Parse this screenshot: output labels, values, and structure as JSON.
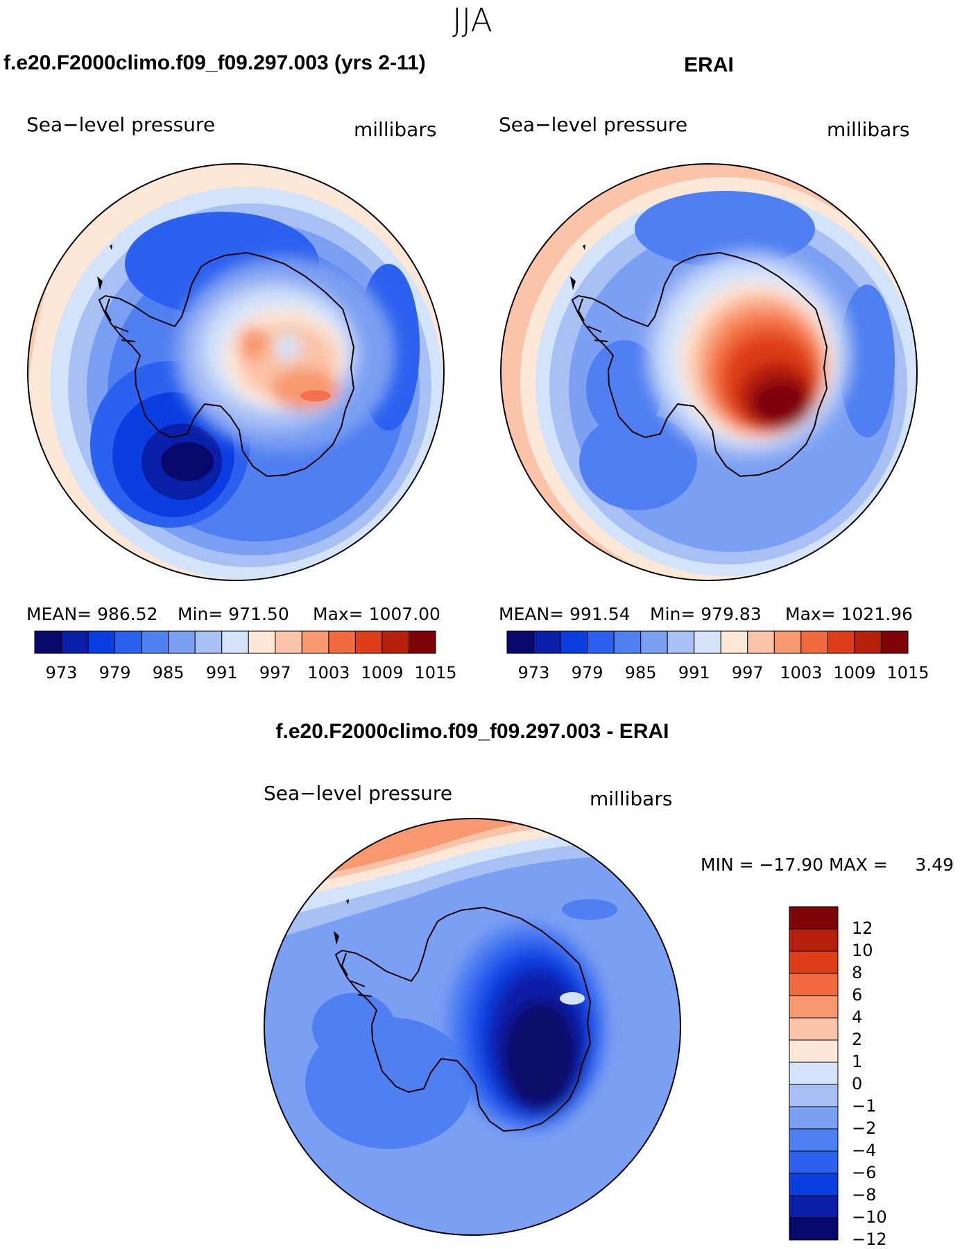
{
  "supertitle": "JJA",
  "panels": [
    {
      "title": "f.e20.F2000climo.f09_f09.297.003 (yrs 2-11)",
      "left_label": "Sea−level pressure",
      "right_label": "millibars",
      "stats": {
        "mean": "MEAN= 986.52",
        "min": "Min= 971.50",
        "max": "Max= 1007.00"
      }
    },
    {
      "title": "ERAI",
      "left_label": "Sea−level pressure",
      "right_label": "millibars",
      "stats": {
        "mean": "MEAN= 991.54",
        "min": "Min= 979.83",
        "max": "Max= 1021.96"
      }
    },
    {
      "title": "f.e20.F2000climo.f09_f09.297.003 - ERAI",
      "left_label": "Sea−level pressure",
      "right_label": "millibars",
      "minmax": "MIN = −17.90 MAX =     3.49"
    }
  ],
  "colorbar_abs": {
    "labels": [
      "973",
      "979",
      "985",
      "991",
      "997",
      "1003",
      "1009",
      "1015"
    ],
    "colors": [
      "#08086b",
      "#0a1fa8",
      "#0b3ee0",
      "#2c60ee",
      "#4f7ff0",
      "#7b9ff2",
      "#a9c0f5",
      "#d3e3fa",
      "#fde8d8",
      "#fbc3a8",
      "#f8986f",
      "#f1693e",
      "#dd3d18",
      "#b61f0c",
      "#7f0407"
    ]
  },
  "colorbar_diff": {
    "labels": [
      "12",
      "10",
      "8",
      "6",
      "4",
      "2",
      "1",
      "0",
      "−1",
      "−2",
      "−4",
      "−6",
      "−8",
      "−10",
      "−12"
    ],
    "colors": [
      "#7f0407",
      "#b61f0c",
      "#dd3d18",
      "#f1693e",
      "#f8986f",
      "#fbc3a8",
      "#fde8d8",
      "#d3e3fa",
      "#a9c0f5",
      "#7b9ff2",
      "#4f7ff0",
      "#2c60ee",
      "#0b3ee0",
      "#0a1fa8",
      "#08086b"
    ]
  }
}
